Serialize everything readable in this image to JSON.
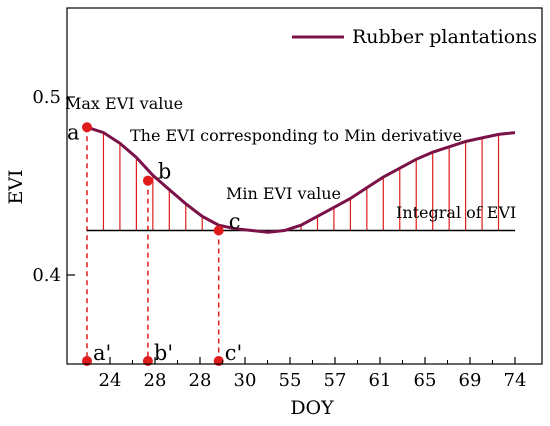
{
  "chart_data": {
    "type": "line",
    "title": "",
    "xlabel": "DOY",
    "ylabel": "EVI",
    "x_tick_labels": [
      "24",
      "28",
      "28",
      "30",
      "55",
      "57",
      "61",
      "65",
      "69",
      "74"
    ],
    "y_ticks": [
      {
        "label": "0.4",
        "value": 0.4
      },
      {
        "label": "0.5",
        "value": 0.5
      }
    ],
    "ylim": [
      0.35,
      0.55
    ],
    "baseline": 0.425,
    "grid": false,
    "legend_position": "top-right",
    "series": [
      {
        "name": "Rubber plantations",
        "color": "#7b1247",
        "x": [
          0,
          1,
          2,
          3,
          4,
          5,
          6,
          7,
          8,
          9,
          10,
          11,
          12,
          13,
          14,
          15,
          16,
          17,
          18,
          19,
          20,
          21,
          22,
          23,
          24,
          25,
          26
        ],
        "y": [
          0.483,
          0.48,
          0.474,
          0.466,
          0.456,
          0.448,
          0.44,
          0.433,
          0.428,
          0.426,
          0.425,
          0.424,
          0.425,
          0.428,
          0.433,
          0.438,
          0.443,
          0.449,
          0.455,
          0.46,
          0.465,
          0.469,
          0.472,
          0.475,
          0.477,
          0.479,
          0.48
        ]
      }
    ],
    "stems_color": "#e01b1b",
    "points": [
      {
        "label": "a",
        "foot_label": "a'",
        "x": 0,
        "y": 0.483
      },
      {
        "label": "b",
        "foot_label": "b'",
        "x": 3.7,
        "y": 0.453
      },
      {
        "label": "c",
        "foot_label": "c'",
        "x": 8,
        "y": 0.425
      }
    ],
    "annotations": {
      "max": "Max EVI value",
      "min_derivative": "The EVI corresponding to Min derivative",
      "min": "Min EVI value",
      "integral": "Integral of EVI"
    }
  }
}
